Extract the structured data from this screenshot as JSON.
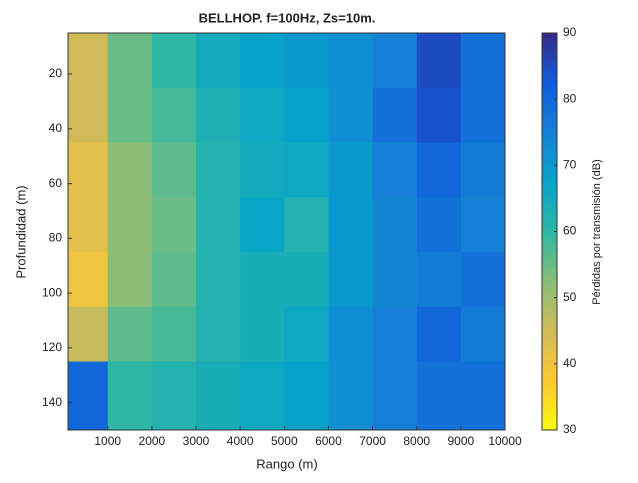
{
  "chart_data": {
    "type": "heatmap",
    "title": "BELLHOP. f=100Hz, Zs=10m.",
    "x_label": "Rango (m)",
    "y_label": "Profundidad (m)",
    "colorbar_label": "Pérdidas por transmisión (dB)",
    "colormap": "parula_r",
    "x_edges": [
      100,
      1000,
      2000,
      3000,
      4000,
      5000,
      6000,
      7000,
      8000,
      9000,
      10000
    ],
    "y_edges": [
      5,
      25,
      45,
      65,
      85,
      105,
      125,
      150
    ],
    "z": [
      [
        45,
        55,
        60,
        65,
        68,
        70,
        72,
        75,
        85,
        78
      ],
      [
        45,
        55,
        58,
        63,
        66,
        68,
        72,
        78,
        84,
        78
      ],
      [
        42,
        52,
        56,
        62,
        65,
        66,
        70,
        75,
        80,
        76
      ],
      [
        42,
        52,
        55,
        62,
        67,
        62,
        70,
        74,
        78,
        75
      ],
      [
        40,
        52,
        56,
        62,
        64,
        64,
        70,
        74,
        76,
        78
      ],
      [
        46,
        56,
        58,
        62,
        64,
        66,
        72,
        75,
        80,
        76
      ],
      [
        80,
        60,
        62,
        64,
        66,
        68,
        72,
        75,
        78,
        78
      ]
    ],
    "xlim": [
      100,
      10000
    ],
    "xticks": [
      1000,
      2000,
      3000,
      4000,
      5000,
      6000,
      7000,
      8000,
      9000,
      10000
    ],
    "ylim": [
      5,
      150
    ],
    "y_reversed": true,
    "yticks": [
      20,
      40,
      60,
      80,
      100,
      120,
      140
    ],
    "clim": [
      30,
      90
    ],
    "cticks": [
      30,
      40,
      50,
      60,
      70,
      80,
      90
    ]
  }
}
